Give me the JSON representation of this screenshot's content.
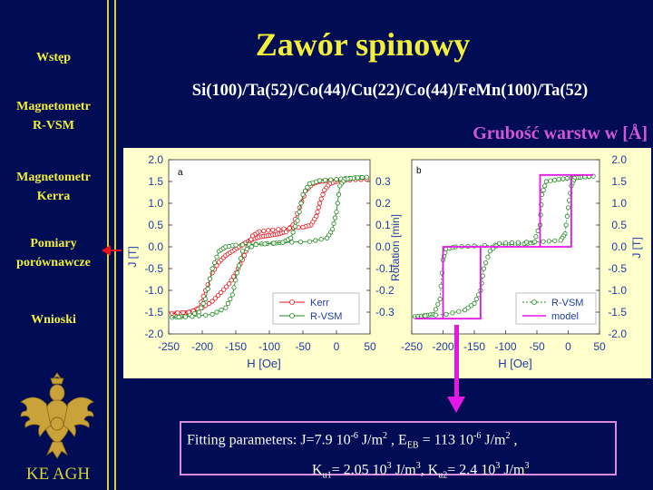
{
  "slide": {
    "title": "Zawór spinowy",
    "subtitle": "Si(100)/Ta(52)/Co(44)/Cu(22)/Co(44)/FeMn(100)/Ta(52)",
    "layer_note": "Grubość warstw w [Å]"
  },
  "nav": {
    "items": [
      {
        "line1": "Wstęp",
        "line2": ""
      },
      {
        "line1": "Magnetometr",
        "line2": "R-VSM"
      },
      {
        "line1": "Magnetometr",
        "line2": "Kerra"
      },
      {
        "line1": "Pomiary",
        "line2": "porównawcze"
      },
      {
        "line1": "Wnioski",
        "line2": ""
      }
    ],
    "active_index": 3
  },
  "logo": {
    "text": "KE AGH",
    "icon": "eagle-emblem-icon"
  },
  "fit": {
    "label": "Fitting parameters:",
    "J_val": "J=7.9 10",
    "J_exp": "-6",
    "J_unit": " J/m",
    "J_unit_exp": "2",
    "sep1": " , E",
    "EB_sub": "EB",
    "EB_val": " = 113 10",
    "EB_exp": "-6",
    "EB_unit": " J/m",
    "EB_unit_exp": "2",
    "sep2": " ,",
    "K1_pre": "K",
    "K1_sub": "u1",
    "K1_val": "= 2.05 10",
    "K1_exp": "3",
    "K1_unit": " J/m",
    "K1_unit_exp": "3",
    "sep3": ", K",
    "K2_sub": "u2",
    "K2_val": "= 2.4 10",
    "K2_exp": "3",
    "K2_unit": " J/m",
    "K2_unit_exp": "3"
  },
  "colors": {
    "background": "#000d55",
    "accent_yellow": "#f3ee3a",
    "magenta": "#e617e6",
    "kerr": "#e8141c",
    "rvsm": "#1f8a1f"
  },
  "chart_data": [
    {
      "type": "line",
      "panel_label": "a",
      "xlabel": "H [Oe]",
      "ylabel_left": "J [T]",
      "ylabel_right": "Rotation [min]",
      "xlim": [
        -250,
        50
      ],
      "ylim_left": [
        -2.0,
        2.0
      ],
      "ylim_right": [
        -0.4,
        0.4
      ],
      "x_ticks": [
        "-250",
        "-200",
        "-150",
        "-100",
        "-50",
        "0",
        "50"
      ],
      "y_ticks_left": [
        "2.0",
        "1.5",
        "1.0",
        "0.5",
        "0.0",
        "-0.5",
        "-1.0",
        "-1.5",
        "-2.0"
      ],
      "y_ticks_right": [
        "0.3",
        "0.2",
        "0.1",
        "0.0",
        "-0.1",
        "-0.2",
        "-0.3"
      ],
      "legend": [
        "Kerr",
        "R-VSM"
      ],
      "legend_position": "bottom-right",
      "series": [
        {
          "name": "Kerr",
          "axis": "right",
          "color": "#e8141c",
          "branches": [
            [
              [
                -245,
                -0.305
              ],
              [
                -225,
                -0.303
              ],
              [
                -215,
                -0.298
              ],
              [
                -205,
                -0.28
              ],
              [
                -195,
                -0.2
              ],
              [
                -185,
                -0.12
              ],
              [
                -175,
                -0.07
              ],
              [
                -165,
                -0.04
              ],
              [
                -155,
                -0.02
              ],
              [
                -145,
                0.0
              ],
              [
                -135,
                0.02
              ],
              [
                -125,
                0.035
              ],
              [
                -115,
                0.045
              ],
              [
                -105,
                0.05
              ],
              [
                -95,
                0.055
              ],
              [
                -85,
                0.06
              ],
              [
                -75,
                0.07
              ],
              [
                -65,
                0.1
              ],
              [
                -55,
                0.18
              ],
              [
                -45,
                0.26
              ],
              [
                -35,
                0.29
              ],
              [
                -25,
                0.3
              ],
              [
                -10,
                0.305
              ],
              [
                20,
                0.308
              ],
              [
                45,
                0.31
              ]
            ],
            [
              [
                45,
                0.31
              ],
              [
                20,
                0.308
              ],
              [
                0,
                0.3
              ],
              [
                -10,
                0.29
              ],
              [
                -18,
                0.26
              ],
              [
                -25,
                0.2
              ],
              [
                -30,
                0.14
              ],
              [
                -38,
                0.1
              ],
              [
                -50,
                0.09
              ],
              [
                -70,
                0.085
              ],
              [
                -95,
                0.078
              ],
              [
                -115,
                0.07
              ],
              [
                -125,
                0.05
              ],
              [
                -132,
                0.0
              ],
              [
                -140,
                -0.06
              ],
              [
                -150,
                -0.12
              ],
              [
                -160,
                -0.17
              ],
              [
                -172,
                -0.21
              ],
              [
                -185,
                -0.25
              ],
              [
                -200,
                -0.28
              ],
              [
                -220,
                -0.3
              ],
              [
                -245,
                -0.305
              ]
            ]
          ]
        },
        {
          "name": "R-VSM",
          "axis": "left",
          "color": "#1f8a1f",
          "branches": [
            [
              [
                -245,
                -1.62
              ],
              [
                -225,
                -1.6
              ],
              [
                -205,
                -1.5
              ],
              [
                -195,
                -1.2
              ],
              [
                -185,
                -0.5
              ],
              [
                -175,
                -0.1
              ],
              [
                -165,
                0.0
              ],
              [
                -150,
                0.04
              ],
              [
                -120,
                0.06
              ],
              [
                -95,
                0.08
              ],
              [
                -80,
                0.1
              ],
              [
                -68,
                0.2
              ],
              [
                -58,
                0.6
              ],
              [
                -50,
                1.2
              ],
              [
                -40,
                1.45
              ],
              [
                -25,
                1.52
              ],
              [
                0,
                1.55
              ],
              [
                20,
                1.58
              ],
              [
                45,
                1.6
              ]
            ],
            [
              [
                45,
                1.6
              ],
              [
                25,
                1.58
              ],
              [
                12,
                1.55
              ],
              [
                5,
                1.4
              ],
              [
                0,
                0.8
              ],
              [
                -6,
                0.4
              ],
              [
                -14,
                0.2
              ],
              [
                -40,
                0.12
              ],
              [
                -80,
                0.1
              ],
              [
                -120,
                0.05
              ],
              [
                -140,
                -0.1
              ],
              [
                -148,
                -0.6
              ],
              [
                -155,
                -1.1
              ],
              [
                -165,
                -1.4
              ],
              [
                -185,
                -1.55
              ],
              [
                -215,
                -1.6
              ],
              [
                -245,
                -1.62
              ]
            ]
          ]
        }
      ]
    },
    {
      "type": "line",
      "panel_label": "b",
      "xlabel": "H [Oe]",
      "ylabel_right": "J [T]",
      "xlim": [
        -250,
        50
      ],
      "ylim": [
        -2.0,
        2.0
      ],
      "x_ticks": [
        "-250",
        "-200",
        "-150",
        "-100",
        "-50",
        "0",
        "50"
      ],
      "y_ticks": [
        "2.0",
        "1.5",
        "1.0",
        "0.5",
        "0.0",
        "-0.5",
        "-1.0",
        "-1.5",
        "-2.0"
      ],
      "legend": [
        "R-VSM",
        "model"
      ],
      "legend_position": "bottom-right",
      "series": [
        {
          "name": "R-VSM",
          "color": "#1f8a1f",
          "branches": [
            [
              [
                -245,
                -1.6
              ],
              [
                -230,
                -1.58
              ],
              [
                -215,
                -1.55
              ],
              [
                -205,
                -1.2
              ],
              [
                -200,
                -0.3
              ],
              [
                -195,
                -0.05
              ],
              [
                -180,
                0.0
              ],
              [
                -150,
                0.02
              ],
              [
                -100,
                0.05
              ],
              [
                -70,
                0.07
              ],
              [
                -55,
                0.1
              ],
              [
                -45,
                0.5
              ],
              [
                -42,
                1.2
              ],
              [
                -35,
                1.5
              ],
              [
                -15,
                1.55
              ],
              [
                5,
                1.58
              ],
              [
                20,
                1.6
              ],
              [
                40,
                1.62
              ]
            ],
            [
              [
                40,
                1.62
              ],
              [
                20,
                1.6
              ],
              [
                10,
                1.58
              ],
              [
                5,
                1.4
              ],
              [
                0,
                0.9
              ],
              [
                -5,
                0.3
              ],
              [
                -12,
                0.15
              ],
              [
                -40,
                0.12
              ],
              [
                -80,
                0.1
              ],
              [
                -110,
                0.08
              ],
              [
                -125,
                -0.1
              ],
              [
                -135,
                -0.5
              ],
              [
                -140,
                -1.0
              ],
              [
                -150,
                -1.3
              ],
              [
                -165,
                -1.45
              ],
              [
                -195,
                -1.55
              ],
              [
                -245,
                -1.6
              ]
            ]
          ]
        },
        {
          "name": "model",
          "color": "#e617e6",
          "points": [
            [
              -245,
              -1.65
            ],
            [
              -200,
              -1.65
            ],
            [
              -200,
              0.0
            ],
            [
              -45,
              0.0
            ],
            [
              -45,
              1.65
            ],
            [
              40,
              1.65
            ],
            [
              5,
              1.65
            ],
            [
              5,
              0.0
            ],
            [
              -140,
              0.0
            ],
            [
              -140,
              -1.65
            ],
            [
              -245,
              -1.65
            ]
          ]
        }
      ]
    }
  ]
}
